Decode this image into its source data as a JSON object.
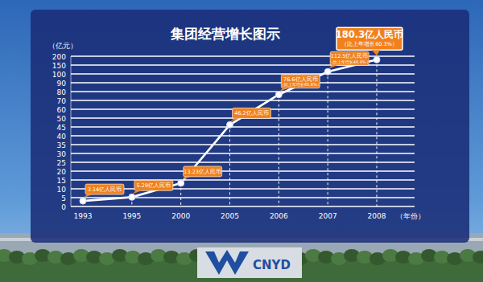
{
  "chart_data": {
    "type": "line",
    "title": "集团经营增长图示",
    "y_label": "（亿元）",
    "x_label": "（年份）",
    "categories": [
      "1993",
      "1995",
      "2000",
      "2005",
      "2006",
      "2007",
      "2008"
    ],
    "values": [
      3.14,
      5.29,
      13.23,
      46.2,
      76.6,
      112.5,
      180.3
    ],
    "value_labels": [
      "3.14亿人民币",
      "5.29亿人民币",
      "13.23亿人民币",
      "46.2亿人民币",
      "76.6亿人民币",
      "112.5亿人民币",
      "180.3亿人民币"
    ],
    "annotations": [
      {
        "category": "2006",
        "text": "（比上年增长65.8%）"
      },
      {
        "category": "2007",
        "text": "（比上年增长46.9%）"
      },
      {
        "category": "2008",
        "text": "（比上年增长60.3%）"
      }
    ],
    "color": "#ffffff",
    "marker": "circle",
    "data_labels": true,
    "grid": true,
    "ylim": [
      0,
      200
    ],
    "yticks": [
      0,
      5,
      10,
      15,
      20,
      25,
      30,
      35,
      40,
      45,
      50,
      60,
      70,
      80,
      90,
      100,
      150,
      200
    ]
  },
  "logo": "CNYD"
}
